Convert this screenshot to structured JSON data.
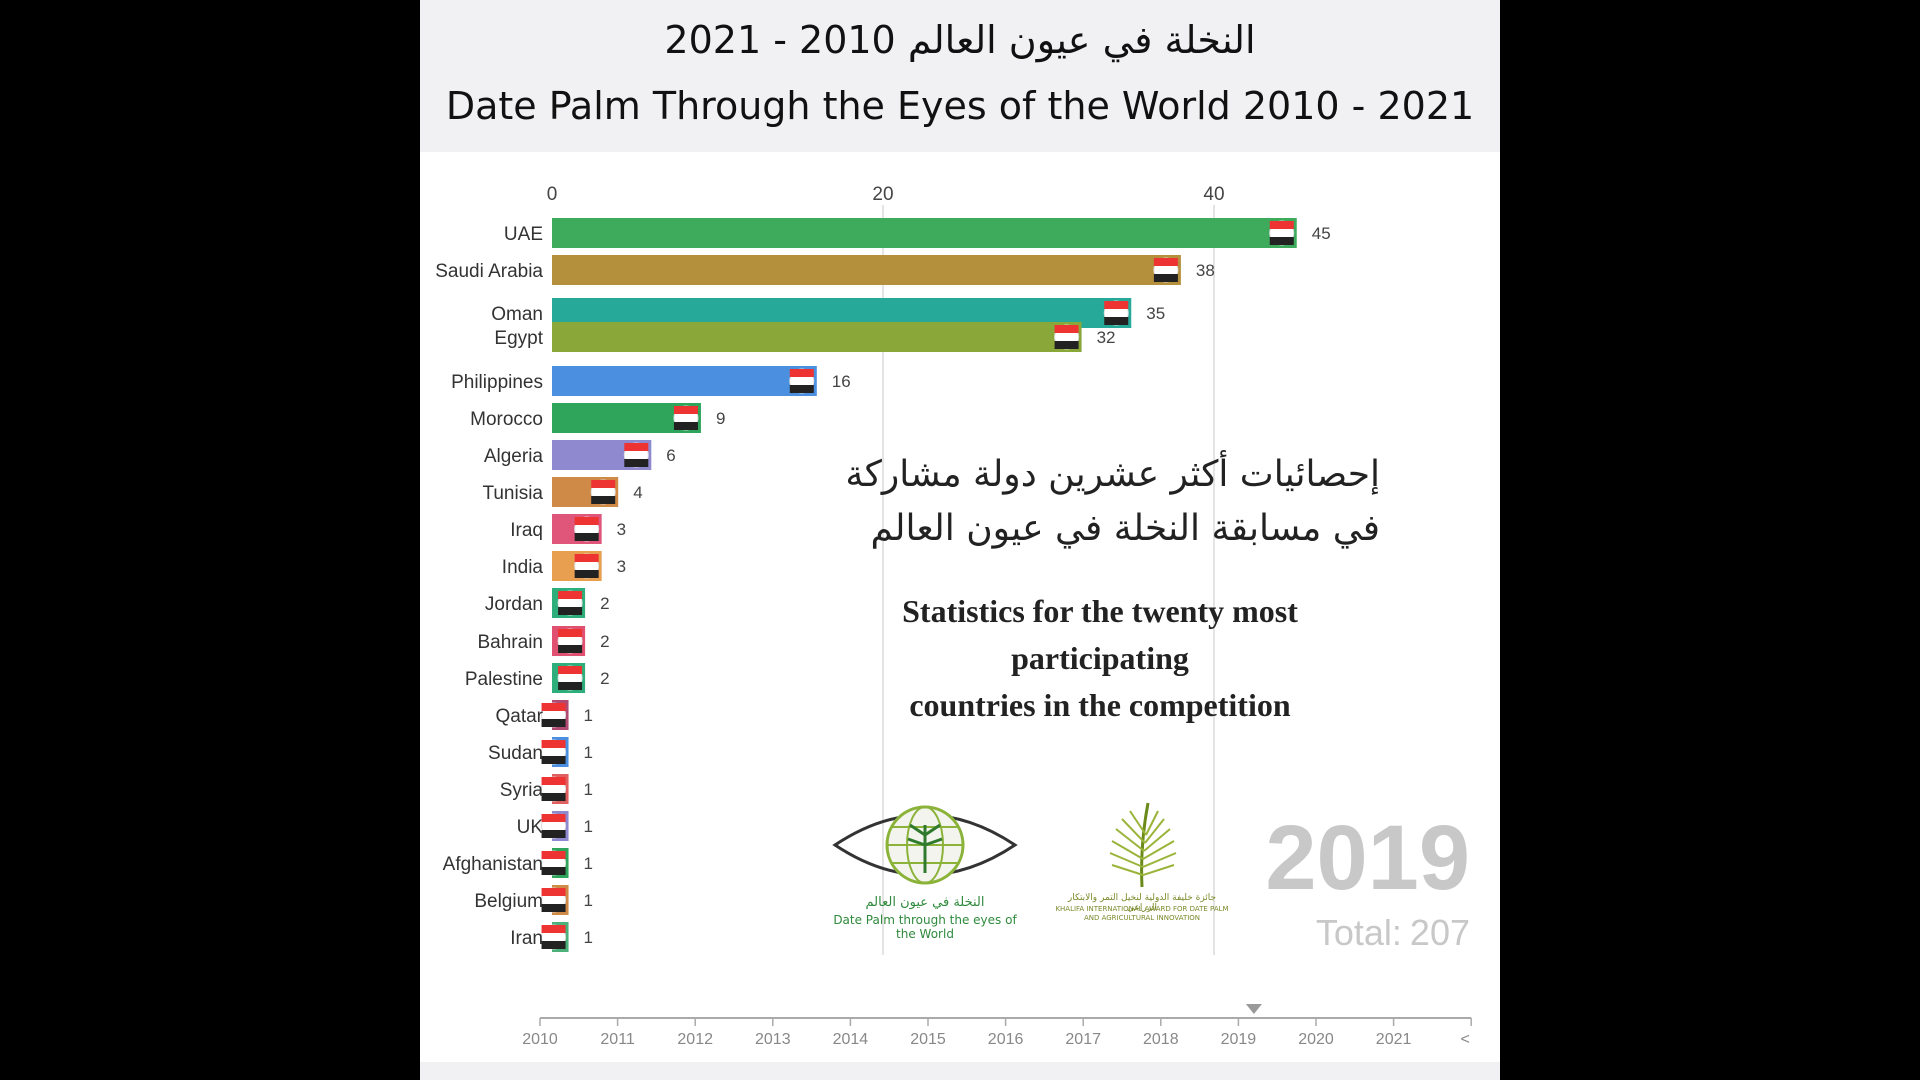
{
  "header": {
    "title_ar": "النخلة في عيون العالم 2010 - 2021",
    "title_en": "Date Palm Through the Eyes of the World 2010 - 2021"
  },
  "overlay": {
    "ar_line1": "إحصائيات أكثر عشرين دولة مشاركة",
    "ar_line2": "في مسابقة النخلة في عيون العالم",
    "en_line1": "Statistics for the twenty most participating",
    "en_line2": "countries in the competition"
  },
  "current": {
    "year": "2019",
    "total_label": "Total:",
    "total_value": "207"
  },
  "logos": {
    "left_ar": "النخلة في عيون العالم",
    "left_en": "Date Palm through the eyes of the World",
    "right_ar": "جائزة خليفة الدولية لنخيل التمر والابتكار الزراعي",
    "right_en": "KHALIFA INTERNATIONAL AWARD FOR DATE PALM AND AGRICULTURAL INNOVATION",
    "right_icon": "palm-frond-icon",
    "left_icon": "eye-globe-palm-icon"
  },
  "timeline": {
    "years": [
      "2010",
      "2011",
      "2012",
      "2013",
      "2014",
      "2015",
      "2016",
      "2017",
      "2018",
      "2019",
      "2020",
      "2021"
    ],
    "current_year": "2019",
    "current_position": 2019.2,
    "end_marker": "<"
  },
  "chart_data": {
    "type": "bar",
    "orientation": "horizontal",
    "xlim": [
      0,
      50
    ],
    "xticks": [
      0,
      20,
      40
    ],
    "grid": true,
    "categories": [
      "UAE",
      "Saudi Arabia",
      "Oman",
      "Egypt",
      "Philippines",
      "Morocco",
      "Algeria",
      "Tunisia",
      "Iraq",
      "India",
      "Jordan",
      "Bahrain",
      "Palestine",
      "Qatar",
      "Sudan",
      "Syria",
      "UK",
      "Afghanistan",
      "Belgium",
      "Iran"
    ],
    "values": [
      45,
      38,
      35,
      32,
      16,
      9,
      6,
      4,
      3,
      3,
      2,
      2,
      2,
      1,
      1,
      1,
      1,
      1,
      1,
      1
    ],
    "bar_values_shown": [
      45,
      38,
      35,
      32,
      16,
      9,
      6,
      4,
      3,
      3,
      2,
      2,
      2,
      1,
      1,
      1,
      1,
      1,
      1,
      1
    ],
    "colors": [
      "#3daa5c",
      "#b5903c",
      "#27a99a",
      "#8aa83a",
      "#4b8fe0",
      "#2ea55a",
      "#8f8ad0",
      "#d08a48",
      "#e0557a",
      "#e8a050",
      "#2eae7a",
      "#e05070",
      "#2eae7a",
      "#b04a72",
      "#4b8fe0",
      "#e06060",
      "#8f8ad0",
      "#2ea55a",
      "#d08a48",
      "#4bb07a"
    ],
    "flag_icons": [
      "uae-flag-icon",
      "saudi-flag-icon",
      "oman-flag-icon",
      "egypt-flag-icon",
      "philippines-flag-icon",
      "morocco-flag-icon",
      "algeria-flag-icon",
      "tunisia-flag-icon",
      "iraq-flag-icon",
      "india-flag-icon",
      "jordan-flag-icon",
      "bahrain-flag-icon",
      "palestine-flag-icon",
      "qatar-flag-icon",
      "sudan-flag-icon",
      "syria-flag-icon",
      "uk-flag-icon",
      "afghanistan-flag-icon",
      "belgium-flag-icon",
      "iran-flag-icon"
    ]
  }
}
